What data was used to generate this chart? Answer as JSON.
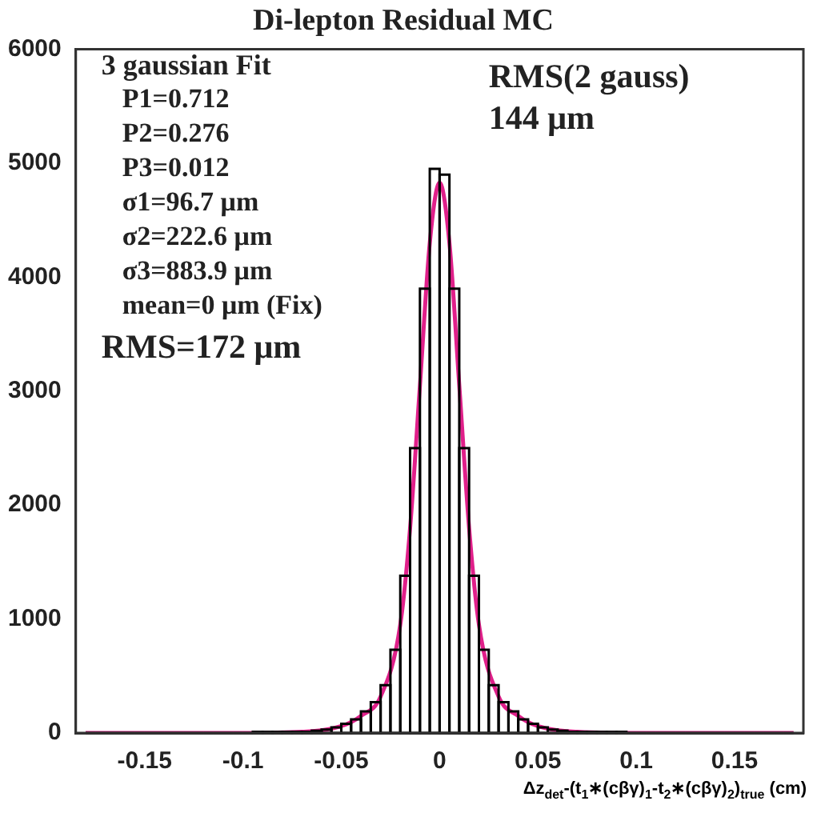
{
  "chart_data": {
    "type": "histogram",
    "title": "Di-lepton Residual MC",
    "xlabel": "Δz$_{det}$-(t$_{1}$∗(cβγ)$_{1}$-t$_{2}$∗(cβγ)$_{2}$)$_{true}$ (cm)",
    "bins": [
      -0.18,
      -0.175,
      -0.17,
      -0.165,
      -0.16,
      -0.155,
      -0.15,
      -0.145,
      -0.14,
      -0.135,
      -0.13,
      -0.125,
      -0.12,
      -0.115,
      -0.11,
      -0.105,
      -0.1,
      -0.095,
      -0.09,
      -0.085,
      -0.08,
      -0.075,
      -0.07,
      -0.065,
      -0.06,
      -0.055,
      -0.05,
      -0.045,
      -0.04,
      -0.035,
      -0.03,
      -0.025,
      -0.02,
      -0.015,
      -0.01,
      -0.005,
      0,
      0.005,
      0.01,
      0.015,
      0.02,
      0.025,
      0.03,
      0.035,
      0.04,
      0.045,
      0.05,
      0.055,
      0.06,
      0.065,
      0.07,
      0.075,
      0.08,
      0.085,
      0.09,
      0.095,
      0.1,
      0.105,
      0.11,
      0.115,
      0.12,
      0.125,
      0.13,
      0.135,
      0.14,
      0.145,
      0.15,
      0.155,
      0.16,
      0.165,
      0.17,
      0.175,
      0.18
    ],
    "values": [
      0,
      0,
      0,
      0,
      0,
      0,
      0,
      0,
      0,
      0,
      0,
      0,
      0,
      0,
      0,
      0,
      0,
      10,
      10,
      10,
      10,
      10,
      10,
      20,
      30,
      50,
      80,
      120,
      190,
      270,
      420,
      730,
      1380,
      2500,
      3900,
      4950,
      4900,
      3900,
      2500,
      1380,
      730,
      420,
      270,
      190,
      120,
      80,
      50,
      30,
      20,
      10,
      10,
      10,
      10,
      10,
      10,
      0,
      0,
      0,
      0,
      0,
      0,
      0,
      0,
      0,
      0,
      0,
      0,
      0,
      0,
      0,
      0,
      0
    ],
    "color": "#000000",
    "series": [
      {
        "type": "line",
        "color": "#e0208a",
        "x": [
          -0.18,
          -0.1,
          -0.07,
          -0.05,
          -0.04,
          -0.03,
          -0.02,
          -0.015,
          -0.01,
          -0.005,
          0,
          0.005,
          0.01,
          0.015,
          0.02,
          0.03,
          0.04,
          0.05,
          0.07,
          0.1,
          0.18
        ],
        "values": [
          0,
          0,
          10,
          60,
          150,
          320,
          950,
          1800,
          3050,
          4300,
          4830,
          4300,
          3050,
          1800,
          950,
          320,
          150,
          60,
          10,
          0,
          0
        ]
      }
    ],
    "xlim": [
      -0.185,
      0.185
    ],
    "xticks": [
      -0.15,
      -0.1,
      -0.05,
      0,
      0.05,
      0.1,
      0.15
    ],
    "ylim": [
      0,
      6000
    ],
    "yticks": [
      0,
      1000,
      2000,
      3000,
      4000,
      5000,
      6000
    ],
    "grid": false,
    "legend": false,
    "annotations": [
      "3 gaussian Fit",
      "P1=0.712",
      "P2=0.276",
      "P3=0.012",
      "σ1=96.7 μm",
      "σ2=222.6 μm",
      "σ3=883.9 μm",
      "mean=0 μm (Fix)",
      "RMS=172 μm",
      "RMS(2 gauss)",
      "144 μm"
    ]
  }
}
